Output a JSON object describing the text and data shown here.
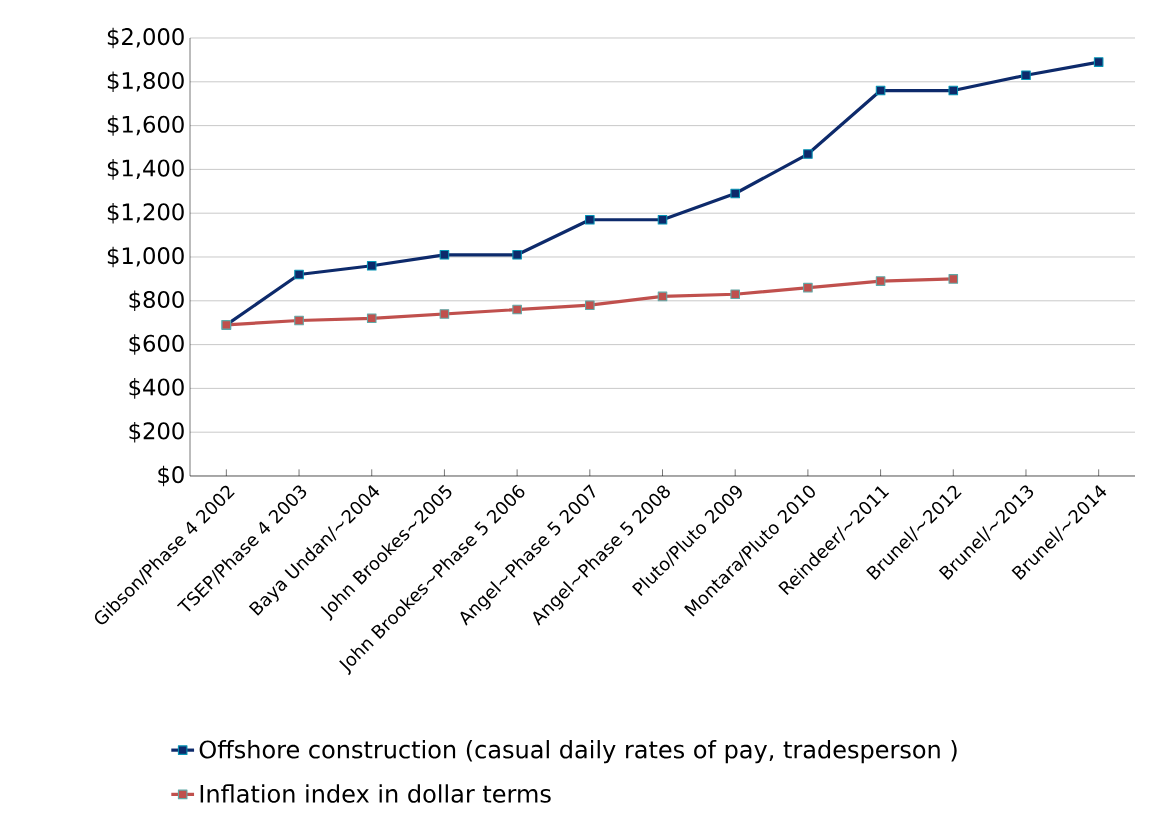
{
  "chart_data": {
    "type": "line",
    "categories": [
      "Gibson/Phase 4 2002",
      "TSEP/Phase 4 2003",
      "Baya Undan/~2004",
      "John Brookes~2005",
      "John Brookes~Phase 5 2006",
      "Angel~Phase 5 2007",
      "Angel~Phase 5 2008",
      "Pluto/Pluto 2009",
      "Montara/Pluto 2010",
      "Reindeer/~2011",
      "Brunel/~2012",
      "Brunel/~2013",
      "Brunel/~2014"
    ],
    "series": [
      {
        "name": "Offshore construction (casual daily rates of pay, tradesperson )",
        "color": "#0d2a6b",
        "values": [
          690,
          920,
          960,
          1010,
          1010,
          1170,
          1170,
          1290,
          1470,
          1760,
          1760,
          1830,
          1890
        ]
      },
      {
        "name": "Inflation index in dollar terms",
        "color": "#c0504d",
        "values": [
          690,
          710,
          720,
          740,
          760,
          780,
          820,
          830,
          860,
          890,
          900,
          null,
          null
        ]
      }
    ],
    "ylim": [
      0,
      2000
    ],
    "yticks": [
      {
        "value": 0,
        "label": "$0"
      },
      {
        "value": 200,
        "label": "$200"
      },
      {
        "value": 400,
        "label": "$400"
      },
      {
        "value": 600,
        "label": "$600"
      },
      {
        "value": 800,
        "label": "$800"
      },
      {
        "value": 1000,
        "label": "$1,000"
      },
      {
        "value": 1200,
        "label": "$1,200"
      },
      {
        "value": 1400,
        "label": "$1,400"
      },
      {
        "value": 1600,
        "label": "$1,600"
      },
      {
        "value": 1800,
        "label": "$1,800"
      },
      {
        "value": 2000,
        "label": "$2,000"
      }
    ],
    "grid": "y",
    "legend": "bottom",
    "marker": "square",
    "line_style": "solid"
  }
}
